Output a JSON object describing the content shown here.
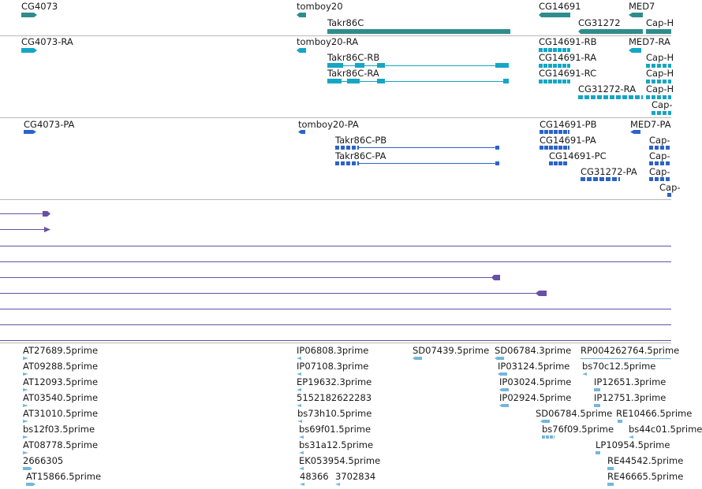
{
  "colors": {
    "gene": "#2f8c8c",
    "transcript": "#15a6c4",
    "protein": "#2d63c8",
    "alignment": "#6a4fa6",
    "est": "#74b6dc"
  },
  "gene_track": {
    "labels": [
      "CG4073",
      "tomboy20",
      "Takr86C",
      "CG14691",
      "CG31272",
      "MED7",
      "Cap-H"
    ]
  },
  "transcript_track": {
    "labels": [
      "CG4073-RA",
      "tomboy20-RA",
      "Takr86C-RB",
      "Takr86C-RA",
      "CG14691-RB",
      "CG14691-RA",
      "CG14691-RC",
      "CG31272-RA",
      "MED7-RA",
      "Cap-H",
      "Cap-H",
      "Cap-H",
      "Cap-"
    ]
  },
  "protein_track": {
    "labels": [
      "CG4073-PA",
      "tomboy20-PA",
      "Takr86C-PB",
      "Takr86C-PA",
      "CG14691-PB",
      "CG14691-PA",
      "CG14691-PC",
      "CG31272-PA",
      "MED7-PA",
      "Cap-",
      "Cap-",
      "Cap-",
      "Cap-"
    ]
  },
  "est_track": {
    "labels": [
      "AT27689.5prime",
      "AT09288.5prime",
      "AT12093.5prime",
      "AT03540.5prime",
      "AT31010.5prime",
      "bs12f03.5prime",
      "AT08778.5prime",
      "2666305",
      "AT15866.5prime",
      "IP06808.3prime",
      "IP07108.3prime",
      "EP19632.3prime",
      "5152182622283",
      "bs73h10.5prime",
      "bs69f01.5prime",
      "bs31a12.5prime",
      "EK053954.5prime",
      "48366",
      "3702834",
      "SD07439.5prime",
      "SD06784.3prime",
      "IP03124.5prime",
      "IP03024.5prime",
      "IP02924.5prime",
      "SD06784.5prime",
      "bs76f09.5prime",
      "RP004262764.5prime",
      "bs70c12.5prime",
      "IP12651.3prime",
      "IP12751.3prime",
      "RE10466.5prime",
      "bs44c01.5prime",
      "LP10954.5prime",
      "RE44542.5prime",
      "RE46665.5prime"
    ]
  }
}
